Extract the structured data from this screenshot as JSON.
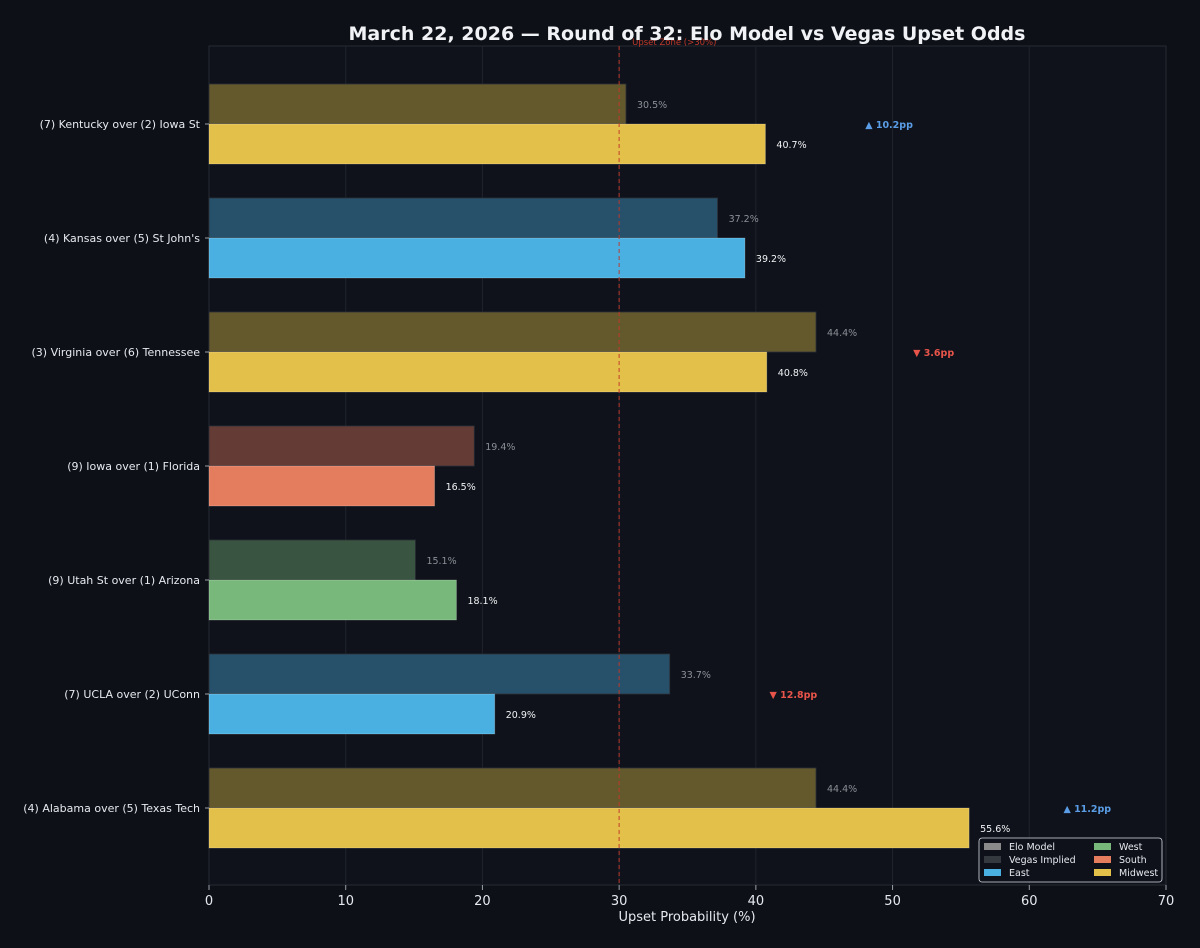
{
  "chart_data": {
    "type": "bar",
    "orientation": "horizontal",
    "title": "March 22, 2026 — Round of 32: Elo Model vs Vegas Upset Odds",
    "xlabel": "Upset Probability (%)",
    "ylabel": "",
    "xlim": [
      0,
      70
    ],
    "x_ticks": [
      0,
      10,
      20,
      30,
      40,
      50,
      60,
      70
    ],
    "grid": true,
    "reference_line": {
      "x": 30,
      "label": "Upset Zone (>30%)",
      "color": "#c0392b"
    },
    "series": [
      {
        "name": "Elo Model",
        "values": [
          30.5,
          37.2,
          44.4,
          19.4,
          15.1,
          33.7,
          44.4
        ]
      },
      {
        "name": "Vegas Implied",
        "values": [
          40.7,
          39.2,
          40.8,
          16.5,
          18.1,
          20.9,
          55.6
        ]
      }
    ],
    "categories": [
      "(7) Kentucky  over  (2) Iowa St",
      "(4) Kansas  over  (5) St John's",
      "(3) Virginia  over  (6) Tennessee",
      "(9) Iowa  over  (1) Florida",
      "(9) Utah St  over  (1) Arizona",
      "(7) UCLA  over  (2) UConn",
      "(4) Alabama  over  (5) Texas Tech"
    ],
    "regions": [
      "Midwest",
      "East",
      "Midwest",
      "South",
      "West",
      "East",
      "Midwest"
    ],
    "elo_labels": [
      "30.5%",
      "37.2%",
      "44.4%",
      "19.4%",
      "15.1%",
      "33.7%",
      "44.4%"
    ],
    "vegas_labels": [
      "40.7%",
      "39.2%",
      "40.8%",
      "16.5%",
      "18.1%",
      "20.9%",
      "55.6%"
    ],
    "annotations": [
      {
        "category_index": 0,
        "text": "▲ 10.2pp",
        "x": 48,
        "direction": "up"
      },
      {
        "category_index": 2,
        "text": "▼ 3.6pp",
        "x": 51.5,
        "direction": "down"
      },
      {
        "category_index": 5,
        "text": "▼ 12.8pp",
        "x": 41,
        "direction": "down"
      },
      {
        "category_index": 6,
        "text": "▲ 11.2pp",
        "x": 62.5,
        "direction": "up"
      }
    ],
    "legend": {
      "placement": "bottom-right",
      "entries": [
        {
          "label": "Elo Model",
          "swatch": "elo"
        },
        {
          "label": "West",
          "swatch": "West"
        },
        {
          "label": "Vegas Implied",
          "swatch": "vegas"
        },
        {
          "label": "South",
          "swatch": "South"
        },
        {
          "label": "East",
          "swatch": "East"
        },
        {
          "label": "Midwest",
          "swatch": "Midwest"
        }
      ]
    },
    "colors": {
      "background": "#0d1017",
      "plot_background": "#0f121a",
      "East": "#4ab0e2",
      "West": "#78b87a",
      "South": "#e47c5e",
      "Midwest": "#e3c04a",
      "up": "#5a9de6",
      "down": "#e8544a",
      "elo_swatch": "#8a8a8a",
      "vegas_swatch": "#34383f"
    }
  }
}
